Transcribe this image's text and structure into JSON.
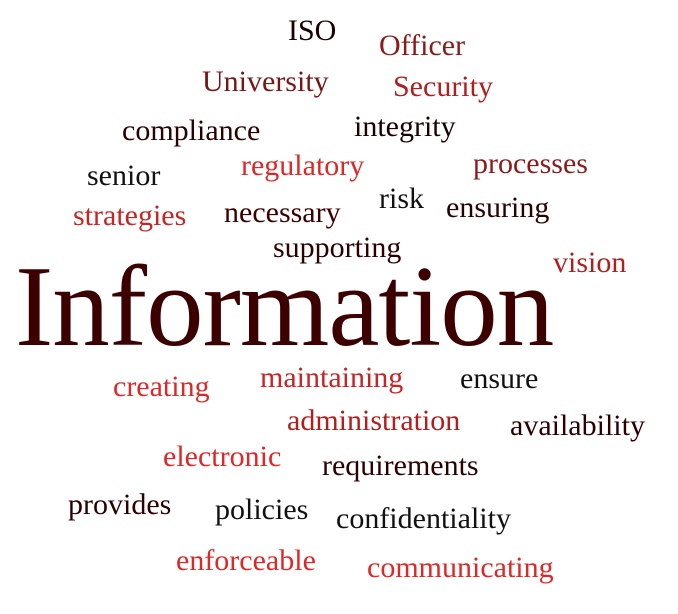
{
  "word_cloud": {
    "colors": {
      "maroon": "#3d0000",
      "dark_red": "#8b1a1a",
      "red": "#d92b2b",
      "black": "#111111"
    },
    "words": [
      {
        "key": "iso",
        "text": "ISO",
        "color": "#1a0000"
      },
      {
        "key": "officer",
        "text": "Officer",
        "color": "#8b1a1a"
      },
      {
        "key": "university",
        "text": "University",
        "color": "#7a1515"
      },
      {
        "key": "security",
        "text": "Security",
        "color": "#b01e1e"
      },
      {
        "key": "compliance",
        "text": "compliance",
        "color": "#2a0000"
      },
      {
        "key": "integrity",
        "text": "integrity",
        "color": "#1a0000"
      },
      {
        "key": "regulatory",
        "text": "regulatory",
        "color": "#e02727"
      },
      {
        "key": "processes",
        "text": "processes",
        "color": "#8b1a1a"
      },
      {
        "key": "senior",
        "text": "senior",
        "color": "#111111"
      },
      {
        "key": "strategies",
        "text": "strategies",
        "color": "#c82424"
      },
      {
        "key": "necessary",
        "text": "necessary",
        "color": "#3a0000"
      },
      {
        "key": "risk",
        "text": "risk",
        "color": "#111111"
      },
      {
        "key": "ensuring",
        "text": "ensuring",
        "color": "#2a0000"
      },
      {
        "key": "supporting",
        "text": "supporting",
        "color": "#2a0000"
      },
      {
        "key": "vision",
        "text": "vision",
        "color": "#b01e1e"
      },
      {
        "key": "information",
        "text": "Information",
        "color": "#3d0000"
      },
      {
        "key": "creating",
        "text": "creating",
        "color": "#e02727"
      },
      {
        "key": "maintaining",
        "text": "maintaining",
        "color": "#c82424"
      },
      {
        "key": "ensure",
        "text": "ensure",
        "color": "#111111"
      },
      {
        "key": "administration",
        "text": "administration",
        "color": "#b01e1e"
      },
      {
        "key": "availability",
        "text": "availability",
        "color": "#2a0000"
      },
      {
        "key": "electronic",
        "text": "electronic",
        "color": "#e02727"
      },
      {
        "key": "requirements",
        "text": "requirements",
        "color": "#2a0000"
      },
      {
        "key": "provides",
        "text": "provides",
        "color": "#2a0000"
      },
      {
        "key": "policies",
        "text": "policies",
        "color": "#111111"
      },
      {
        "key": "confidentiality",
        "text": "confidentiality",
        "color": "#111111"
      },
      {
        "key": "enforceable",
        "text": "enforceable",
        "color": "#e02727"
      },
      {
        "key": "communicating",
        "text": "communicating",
        "color": "#e02727"
      }
    ]
  }
}
